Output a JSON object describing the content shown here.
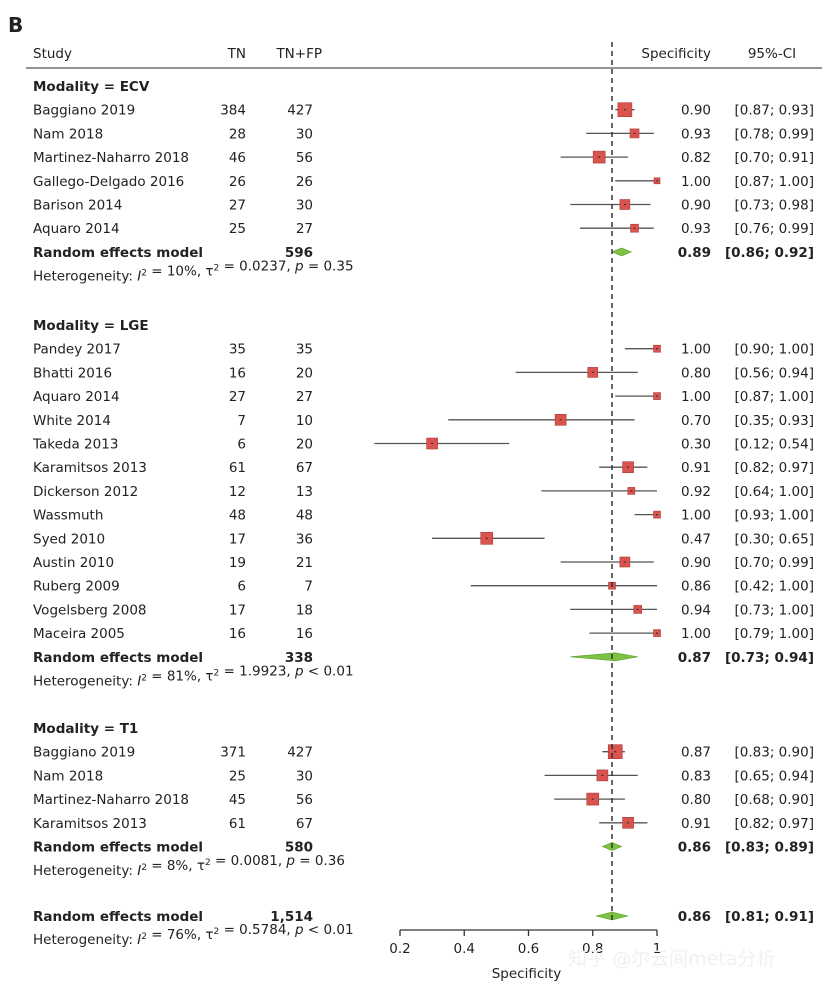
{
  "panel_letter": "B",
  "columns": {
    "study": "Study",
    "tn": "TN",
    "tnfp": "TN+FP",
    "spec": "Specificity",
    "ci": "95%-CI"
  },
  "watermark": "知乎 @尔云间meta分析",
  "chart_data": {
    "type": "forest",
    "xlabel": "Specificity",
    "xlim": [
      0.2,
      1.0
    ],
    "xticks": [
      "0.2",
      "0.4",
      "0.6",
      "0.8",
      "1"
    ],
    "reference_line": 0.86,
    "groups": [
      {
        "title": "Modality = ECV",
        "studies": [
          {
            "name": "Baggiano 2019",
            "tn": "384",
            "total": "427",
            "est": 0.9,
            "lo": 0.87,
            "hi": 0.93,
            "spec": "0.90",
            "ci": "[0.87; 0.93]",
            "w": 14
          },
          {
            "name": "Nam 2018",
            "tn": "28",
            "total": "30",
            "est": 0.93,
            "lo": 0.78,
            "hi": 0.99,
            "spec": "0.93",
            "ci": "[0.78; 0.99]",
            "w": 9
          },
          {
            "name": "Martinez-Naharro 2018",
            "tn": "46",
            "total": "56",
            "est": 0.82,
            "lo": 0.7,
            "hi": 0.91,
            "spec": "0.82",
            "ci": "[0.70; 0.91]",
            "w": 12
          },
          {
            "name": "Gallego-Delgado 2016",
            "tn": "26",
            "total": "26",
            "est": 1.0,
            "lo": 0.87,
            "hi": 1.0,
            "spec": "1.00",
            "ci": "[0.87; 1.00]",
            "w": 6
          },
          {
            "name": "Barison 2014",
            "tn": "27",
            "total": "30",
            "est": 0.9,
            "lo": 0.73,
            "hi": 0.98,
            "spec": "0.90",
            "ci": "[0.73; 0.98]",
            "w": 10
          },
          {
            "name": "Aquaro 2014",
            "tn": "25",
            "total": "27",
            "est": 0.93,
            "lo": 0.76,
            "hi": 0.99,
            "spec": "0.93",
            "ci": "[0.76; 0.99]",
            "w": 8
          }
        ],
        "pooled": {
          "label": "Random effects model",
          "total": "596",
          "est": 0.89,
          "lo": 0.86,
          "hi": 0.92,
          "spec": "0.89",
          "ci": "[0.86; 0.92]"
        },
        "heterogeneity": "Heterogeneity: I² = 10%, τ² = 0.0237, p = 0.35"
      },
      {
        "title": "Modality = LGE",
        "studies": [
          {
            "name": "Pandey 2017",
            "tn": "35",
            "total": "35",
            "est": 1.0,
            "lo": 0.9,
            "hi": 1.0,
            "spec": "1.00",
            "ci": "[0.90; 1.00]",
            "w": 7
          },
          {
            "name": "Bhatti 2016",
            "tn": "16",
            "total": "20",
            "est": 0.8,
            "lo": 0.56,
            "hi": 0.94,
            "spec": "0.80",
            "ci": "[0.56; 0.94]",
            "w": 10
          },
          {
            "name": "Aquaro 2014",
            "tn": "27",
            "total": "27",
            "est": 1.0,
            "lo": 0.87,
            "hi": 1.0,
            "spec": "1.00",
            "ci": "[0.87; 1.00]",
            "w": 7
          },
          {
            "name": "White 2014",
            "tn": "7",
            "total": "10",
            "est": 0.7,
            "lo": 0.35,
            "hi": 0.93,
            "spec": "0.70",
            "ci": "[0.35; 0.93]",
            "w": 11
          },
          {
            "name": "Takeda 2013",
            "tn": "6",
            "total": "20",
            "est": 0.3,
            "lo": 0.12,
            "hi": 0.54,
            "spec": "0.30",
            "ci": "[0.12; 0.54]",
            "w": 11
          },
          {
            "name": "Karamitsos 2013",
            "tn": "61",
            "total": "67",
            "est": 0.91,
            "lo": 0.82,
            "hi": 0.97,
            "spec": "0.91",
            "ci": "[0.82; 0.97]",
            "w": 11
          },
          {
            "name": "Dickerson 2012",
            "tn": "12",
            "total": "13",
            "est": 0.92,
            "lo": 0.64,
            "hi": 1.0,
            "spec": "0.92",
            "ci": "[0.64; 1.00]",
            "w": 7
          },
          {
            "name": "Wassmuth",
            "tn": "48",
            "total": "48",
            "est": 1.0,
            "lo": 0.93,
            "hi": 1.0,
            "spec": "1.00",
            "ci": "[0.93; 1.00]",
            "w": 7
          },
          {
            "name": "Syed 2010",
            "tn": "17",
            "total": "36",
            "est": 0.47,
            "lo": 0.3,
            "hi": 0.65,
            "spec": "0.47",
            "ci": "[0.30; 0.65]",
            "w": 12
          },
          {
            "name": "Austin 2010",
            "tn": "19",
            "total": "21",
            "est": 0.9,
            "lo": 0.7,
            "hi": 0.99,
            "spec": "0.90",
            "ci": "[0.70; 0.99]",
            "w": 10
          },
          {
            "name": "Ruberg 2009",
            "tn": "6",
            "total": "7",
            "est": 0.86,
            "lo": 0.42,
            "hi": 1.0,
            "spec": "0.86",
            "ci": "[0.42; 1.00]",
            "w": 7
          },
          {
            "name": "Vogelsberg 2008",
            "tn": "17",
            "total": "18",
            "est": 0.94,
            "lo": 0.73,
            "hi": 1.0,
            "spec": "0.94",
            "ci": "[0.73; 1.00]",
            "w": 8
          },
          {
            "name": "Maceira 2005",
            "tn": "16",
            "total": "16",
            "est": 1.0,
            "lo": 0.79,
            "hi": 1.0,
            "spec": "1.00",
            "ci": "[0.79; 1.00]",
            "w": 7
          }
        ],
        "pooled": {
          "label": "Random effects model",
          "total": "338",
          "est": 0.87,
          "lo": 0.73,
          "hi": 0.94,
          "spec": "0.87",
          "ci": "[0.73; 0.94]"
        },
        "heterogeneity": "Heterogeneity: I² = 81%, τ² = 1.9923, p < 0.01"
      },
      {
        "title": "Modality = T1",
        "studies": [
          {
            "name": "Baggiano 2019",
            "tn": "371",
            "total": "427",
            "est": 0.87,
            "lo": 0.83,
            "hi": 0.9,
            "spec": "0.87",
            "ci": "[0.83; 0.90]",
            "w": 14
          },
          {
            "name": "Nam 2018",
            "tn": "25",
            "total": "30",
            "est": 0.83,
            "lo": 0.65,
            "hi": 0.94,
            "spec": "0.83",
            "ci": "[0.65; 0.94]",
            "w": 11
          },
          {
            "name": "Martinez-Naharro 2018",
            "tn": "45",
            "total": "56",
            "est": 0.8,
            "lo": 0.68,
            "hi": 0.9,
            "spec": "0.80",
            "ci": "[0.68; 0.90]",
            "w": 12
          },
          {
            "name": "Karamitsos 2013",
            "tn": "61",
            "total": "67",
            "est": 0.91,
            "lo": 0.82,
            "hi": 0.97,
            "spec": "0.91",
            "ci": "[0.82; 0.97]",
            "w": 11
          }
        ],
        "pooled": {
          "label": "Random effects model",
          "total": "580",
          "est": 0.86,
          "lo": 0.83,
          "hi": 0.89,
          "spec": "0.86",
          "ci": "[0.83; 0.89]"
        },
        "heterogeneity": "Heterogeneity: I² = 8%, τ² = 0.0081, p = 0.36"
      }
    ],
    "overall": {
      "label": "Random effects model",
      "total": "1,514",
      "est": 0.86,
      "lo": 0.81,
      "hi": 0.91,
      "spec": "0.86",
      "ci": "[0.81; 0.91]",
      "heterogeneity": "Heterogeneity: I² = 76%, τ² = 0.5784, p < 0.01"
    },
    "colors": {
      "box": "#d9534f",
      "box_edge": "#b03a36",
      "diamond": "#7dc242",
      "line": "#555555",
      "text": "#222222"
    }
  }
}
